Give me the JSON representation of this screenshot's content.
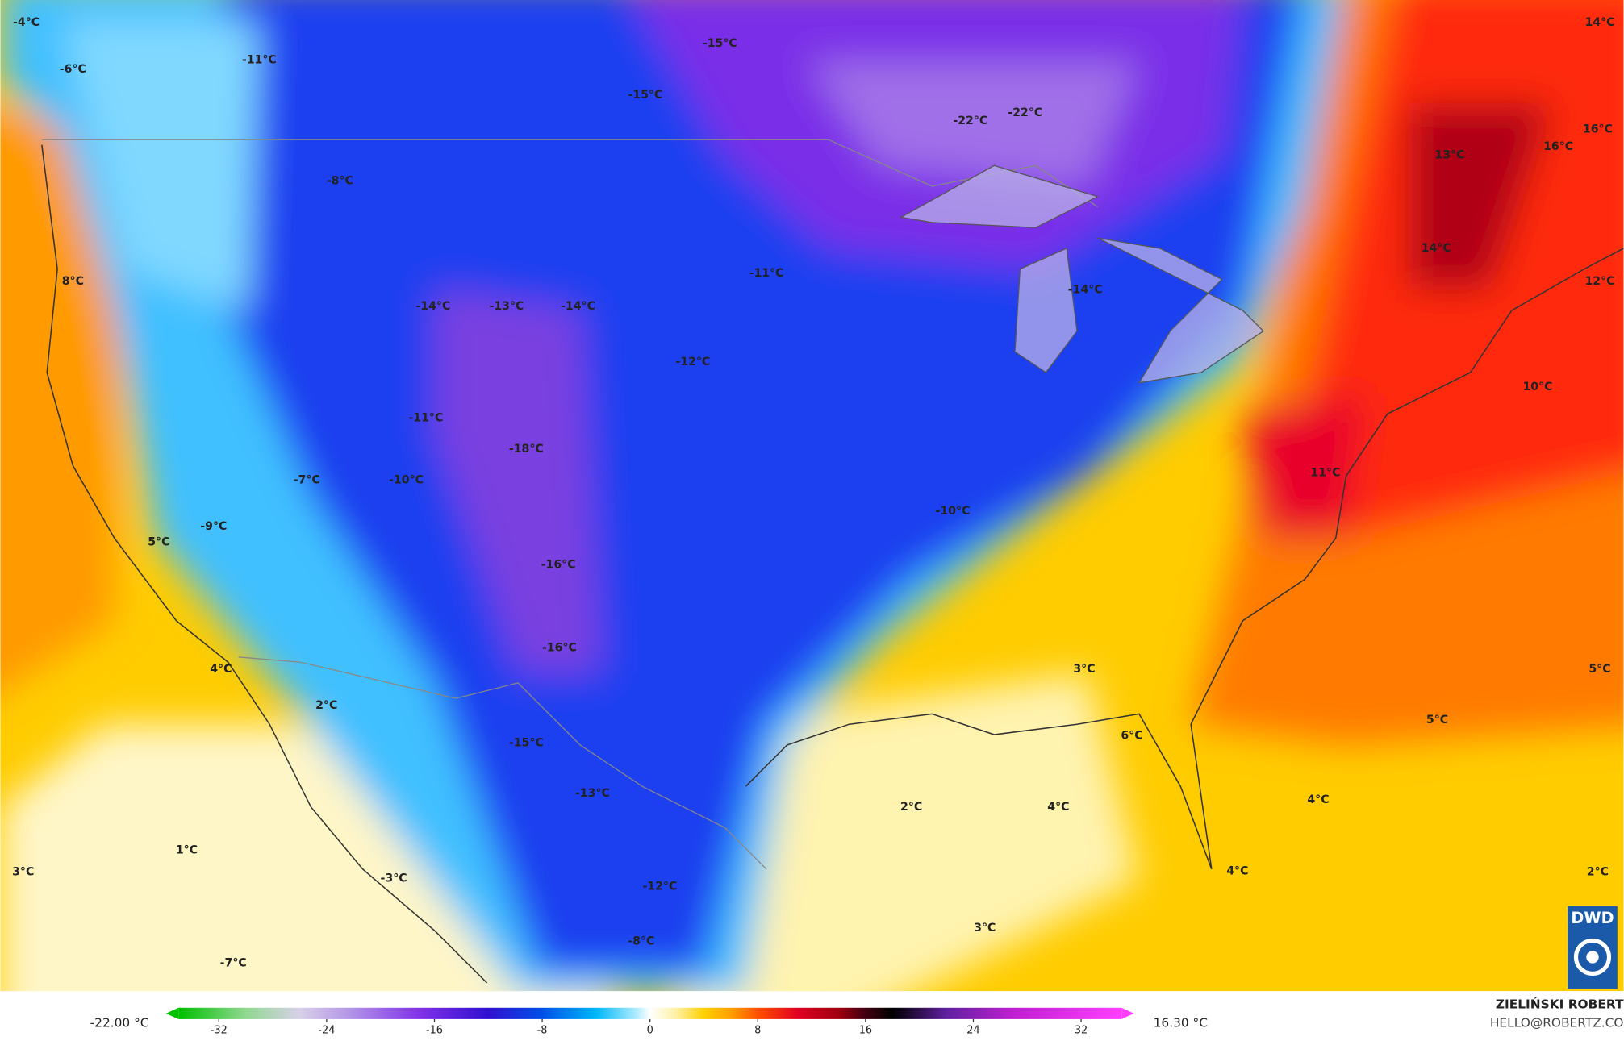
{
  "map": {
    "labels": [
      "-4°C",
      "14°C",
      "-11°C",
      "-6°C",
      "-15°C",
      "-15°C",
      "-22°C",
      "-22°C",
      "16°C",
      "16°C",
      "13°C",
      "-8°C",
      "14°C",
      "12°C",
      "8°C",
      "-11°C",
      "-14°C",
      "-13°C",
      "-14°C",
      "-14°C",
      "-12°C",
      "10°C",
      "-11°C",
      "-18°C",
      "-7°C",
      "-10°C",
      "11°C",
      "-10°C",
      "-9°C",
      "5°C",
      "-16°C",
      "-16°C",
      "3°C",
      "5°C",
      "4°C",
      "2°C",
      "5°C",
      "6°C",
      "-15°C",
      "-13°C",
      "2°C",
      "4°C",
      "4°C",
      "1°C",
      "3°C",
      "-3°C",
      "4°C",
      "2°C",
      "-12°C",
      "3°C",
      "-8°C",
      "-7°C"
    ],
    "logo": "DWD"
  },
  "colorbar": {
    "min_label": "-22.00 °C",
    "max_label": "16.30 °C",
    "lim": [
      -35,
      35
    ],
    "ticks": [
      -32,
      -24,
      -16,
      -8,
      0,
      8,
      16,
      24,
      32
    ]
  },
  "credits": {
    "name": "ZIELIŃSKI ROBERT",
    "contact": "HELLO@ROBERTZ.CO"
  }
}
